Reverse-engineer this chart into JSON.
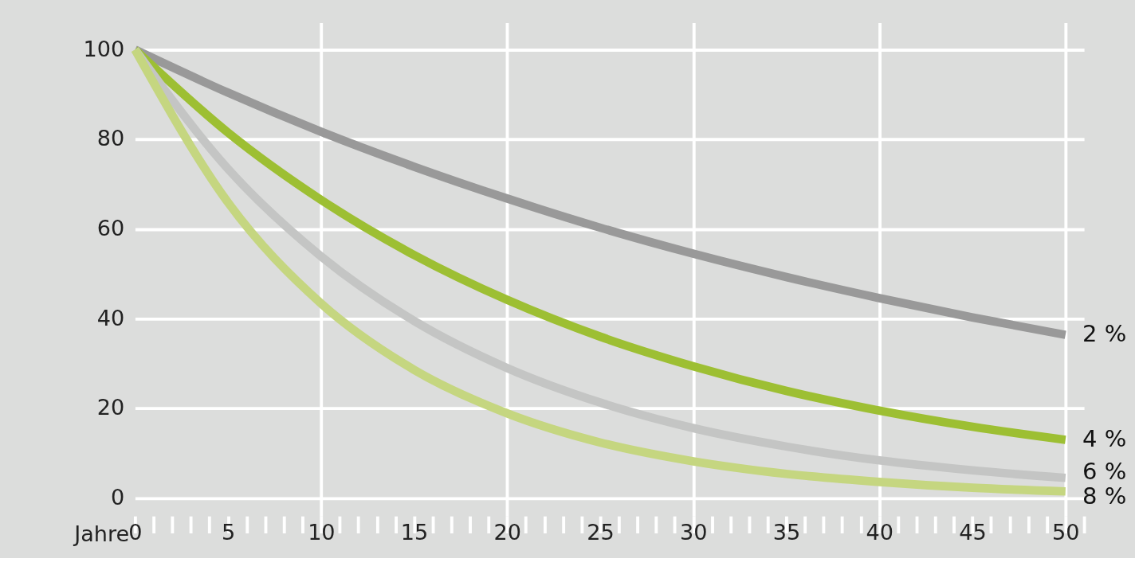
{
  "chart_data": {
    "type": "line",
    "xlabel": "Jahre",
    "x": [
      0,
      5,
      10,
      15,
      20,
      25,
      30,
      35,
      40,
      45,
      50
    ],
    "series": [
      {
        "name": "2 %",
        "color": "#999999",
        "values": [
          100,
          90.4,
          81.7,
          73.9,
          66.8,
          60.3,
          54.5,
          49.3,
          44.6,
          40.3,
          36.4
        ]
      },
      {
        "name": "4 %",
        "color": "#9dbf33",
        "values": [
          100,
          81.5,
          66.5,
          54.2,
          44.2,
          36.0,
          29.4,
          23.9,
          19.5,
          15.9,
          13.0
        ]
      },
      {
        "name": "6 %",
        "color": "#c4c5c4",
        "values": [
          100,
          73.4,
          53.9,
          39.5,
          29.0,
          21.3,
          15.6,
          11.5,
          8.4,
          6.2,
          4.5
        ]
      },
      {
        "name": "8 %",
        "color": "#c5d680",
        "values": [
          100,
          65.9,
          43.4,
          28.6,
          18.9,
          12.4,
          8.2,
          5.4,
          3.6,
          2.3,
          1.5
        ]
      }
    ],
    "xlim": [
      0,
      51
    ],
    "xticks": [
      0,
      5,
      10,
      15,
      20,
      25,
      30,
      35,
      40,
      45,
      50
    ],
    "ylim": [
      -4,
      106
    ],
    "yticks": [
      0,
      20,
      40,
      60,
      80,
      100
    ],
    "grid": true,
    "legend": false,
    "marker": "none",
    "line_style": "solid"
  }
}
